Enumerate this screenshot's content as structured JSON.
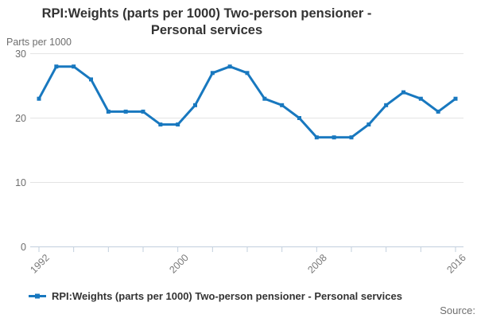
{
  "title": {
    "line1": "RPI:Weights (parts per 1000) Two-person pensioner -",
    "line2": "Personal services"
  },
  "axis": {
    "unit_label": "Parts per 1000"
  },
  "legend": {
    "label": "RPI:Weights (parts per 1000) Two-person pensioner - Personal services"
  },
  "source": {
    "label": "Source:"
  },
  "colors": {
    "line": "#1878bf",
    "grid": "#e4e4e4",
    "axis": "#c2cfdd",
    "title_text": "#333333",
    "muted_text": "#6e6e6e"
  },
  "chart_data": {
    "type": "line",
    "title": "RPI:Weights (parts per 1000) Two-person pensioner - Personal services",
    "ylabel": "Parts per 1000",
    "xlabel": "",
    "x": [
      1992,
      1993,
      1994,
      1995,
      1996,
      1997,
      1998,
      1999,
      2000,
      2001,
      2002,
      2003,
      2004,
      2005,
      2006,
      2007,
      2008,
      2009,
      2010,
      2011,
      2012,
      2013,
      2014,
      2015,
      2016
    ],
    "series": [
      {
        "name": "RPI:Weights (parts per 1000) Two-person pensioner - Personal services",
        "values": [
          23,
          28,
          28,
          26,
          21,
          21,
          21,
          19,
          19,
          22,
          27,
          28,
          27,
          23,
          22,
          20,
          17,
          17,
          17,
          19,
          22,
          24,
          23,
          21,
          23
        ]
      }
    ],
    "ylim": [
      0,
      30
    ],
    "yticks": [
      0,
      10,
      20,
      30
    ],
    "xticks": [
      1992,
      1994,
      1996,
      1998,
      2000,
      2002,
      2004,
      2006,
      2008,
      2010,
      2012,
      2014,
      2016
    ],
    "xtick_labels": [
      "1992",
      "2000",
      "2008",
      "2016"
    ],
    "grid": true,
    "legend_position": "bottom",
    "marker": "square"
  }
}
